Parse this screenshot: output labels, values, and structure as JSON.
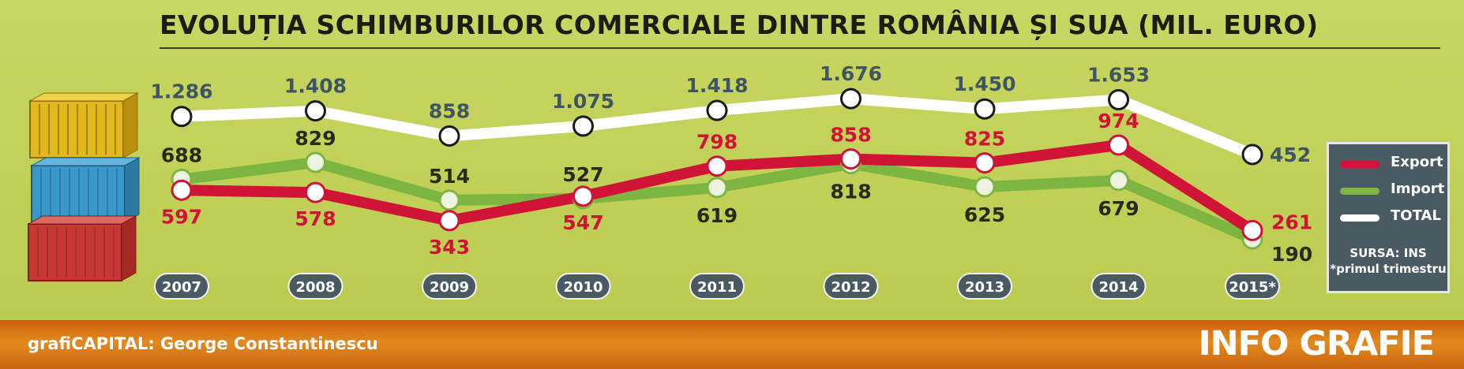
{
  "title": "EVOLUȚIA SCHIMBURILOR COMERCIALE DINTRE ROMÂNIA ȘI SUA (MIL. EURO)",
  "colors": {
    "export": "#cf1438",
    "import": "#7db542",
    "total": "#ffffff",
    "pill": "#4a5a63",
    "dark_label": "#2a2a1a",
    "total_label": "#3f5560"
  },
  "chart_data": {
    "type": "line",
    "categories": [
      "2007",
      "2008",
      "2009",
      "2010",
      "2011",
      "2012",
      "2013",
      "2014",
      "2015*"
    ],
    "series": [
      {
        "name": "Export",
        "values": [
          597,
          578,
          343,
          547,
          798,
          858,
          825,
          974,
          261
        ],
        "labels": [
          "597",
          "578",
          "343",
          "547",
          "798",
          "858",
          "825",
          "974",
          "261"
        ]
      },
      {
        "name": "Import",
        "values": [
          688,
          829,
          514,
          527,
          619,
          818,
          625,
          679,
          190
        ],
        "labels": [
          "688",
          "829",
          "514",
          "527",
          "619",
          "818",
          "625",
          "679",
          "190"
        ]
      },
      {
        "name": "TOTAL",
        "values": [
          1286,
          1408,
          858,
          1075,
          1418,
          1676,
          1450,
          1653,
          452
        ],
        "labels": [
          "1.286",
          "1.408",
          "858",
          "1.075",
          "1.418",
          "1.676",
          "1.450",
          "1.653",
          "452"
        ]
      }
    ],
    "legend_position": "right",
    "grid": false
  },
  "legend": {
    "export": "Export",
    "import": "Import",
    "total": "TOTAL"
  },
  "source": {
    "line1": "SURSA: INS",
    "line2": "*primul trimestru"
  },
  "footer": {
    "credit": "grafiCAPITAL: George Constantinescu",
    "brand": "INFO GRAFIE"
  },
  "icons": {
    "containers": "shipping-containers-icon"
  }
}
